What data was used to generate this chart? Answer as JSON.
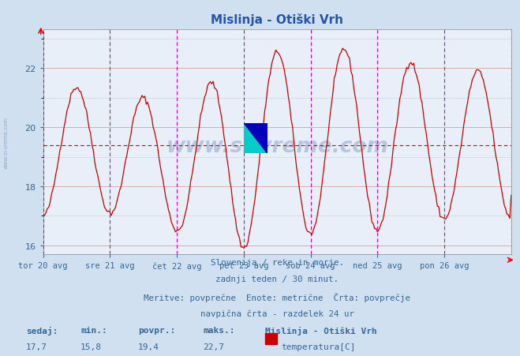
{
  "title": "Mislinja - Otiški Vrh",
  "bg_color": "#d0e0f0",
  "plot_bg_color": "#e8eff8",
  "line_color": "#cc0000",
  "avg_line_color": "#cc0000",
  "grid_color_major": "#ddaaaa",
  "grid_color_minor": "#ccccdd",
  "vline_color": "#cc00cc",
  "avg_value": 19.4,
  "y_axis_min": 15.7,
  "y_axis_max": 23.3,
  "y_ticks": [
    16,
    18,
    20,
    22
  ],
  "x_labels": [
    "tor 20 avg",
    "sre 21 avg",
    "čet 22 avg",
    "pet 23 avg",
    "sob 24 avg",
    "ned 25 avg",
    "pon 26 avg"
  ],
  "n_points": 337,
  "info_text1": "Slovenija / reke in morje.",
  "info_text2": "zadnji teden / 30 minut.",
  "info_text3": "Meritve: povprečne  Enote: metrične  Črta: povprečje",
  "info_text4": "navpična črta - razdelek 24 ur",
  "stat_sedaj_label": "sedaj:",
  "stat_min_label": "min.:",
  "stat_povpr_label": "povpr.:",
  "stat_maks_label": "maks.:",
  "stat_sedaj": "17,7",
  "stat_min": "15,8",
  "stat_povpr": "19,4",
  "stat_maks": "22,7",
  "legend_label": "Mislinja - Otiški Vrh",
  "legend_sublabel": "temperatura[C]",
  "legend_color": "#cc0000",
  "watermark": "www.si-vreme.com",
  "font_color": "#336699",
  "title_color": "#2255aa",
  "sidebar_text": "www.si-vreme.com"
}
